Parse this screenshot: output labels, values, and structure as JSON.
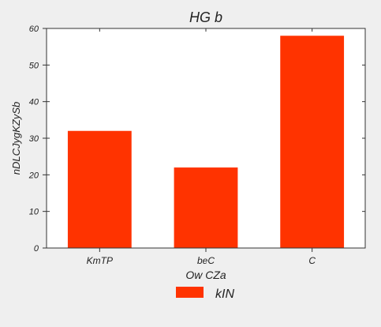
{
  "chart_data": {
    "type": "bar",
    "title": "HG  b",
    "xlabel": "Ow CZa",
    "ylabel": "nDLCJygKZySb",
    "categories": [
      "KmTP",
      "beC",
      "C"
    ],
    "series": [
      {
        "name": "kIN",
        "values": [
          32,
          22,
          58
        ],
        "color": "#ff3300"
      }
    ],
    "ylim": [
      0,
      60
    ],
    "yticks": [
      0,
      10,
      20,
      30,
      40,
      50,
      60
    ],
    "grid": false,
    "legend": "bottom-center"
  }
}
